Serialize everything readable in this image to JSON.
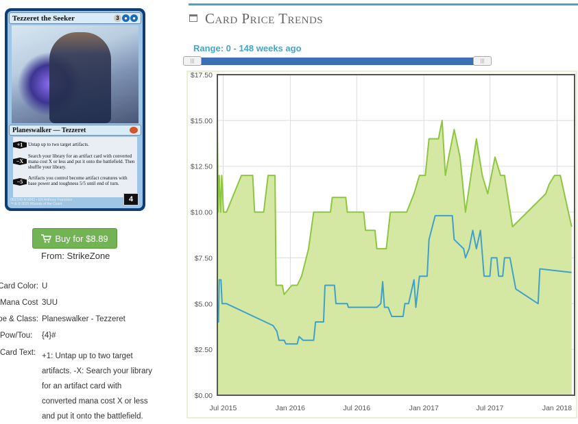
{
  "card": {
    "name": "Tezzeret the Seeker",
    "mana_generic": "3",
    "type_line": "Planeswalker — Tezzeret",
    "abilities": [
      {
        "cost": "+1",
        "text": "Untap up to two target artifacts."
      },
      {
        "cost": "−X",
        "text": "Search your library for an artifact card with converted mana cost X or less and put it onto the battlefield. Then shuffle your library."
      },
      {
        "cost": "−5",
        "text": "Artifacts you control become artifact creatures with base power and toughness 5/5 until end of turn."
      }
    ],
    "loyalty": "4",
    "collector": "062/249 M MM2 • EN  Anthony Francisco",
    "copyright": "™ & © 2015 Wizards of the Coast"
  },
  "buy": {
    "label": "Buy for $8.89",
    "from": "From: StrikeZone"
  },
  "attributes": [
    {
      "label": "Card Color:",
      "value": "U"
    },
    {
      "label": "Mana Cost",
      "value": "3UU"
    },
    {
      "label": "Type & Class:",
      "value": "Planeswalker - Tezzeret"
    },
    {
      "label": "Pow/Tou:",
      "value": "{4}#"
    },
    {
      "label": "Card Text:",
      "value": "+1: Untap up to two target artifacts. -X: Search your library for an artifact card with converted mana cost X or less and put it onto the battlefield."
    }
  ],
  "card_text_lines": [
    "+1: Untap up to two target",
    "artifacts. -X: Search your library",
    "for an artifact card with",
    "converted mana cost X or less",
    "and put it onto the battlefield."
  ],
  "section": {
    "title": "Card Price Trends",
    "range": "Range: 0 - 148 weeks ago"
  },
  "colors": {
    "green": "#8dc63f",
    "green_fill": "#d4e8a4",
    "blue": "#3fa0c8",
    "accent": "#44a6c4",
    "button": "#72b453"
  },
  "chart_data": {
    "type": "line",
    "ylim": [
      0,
      17.5
    ],
    "yticks": [
      "$0.00",
      "$2.50",
      "$5.00",
      "$7.50",
      "$10.00",
      "$12.50",
      "$15.00",
      "$17.50"
    ],
    "xticks": [
      "Jul 2015",
      "Jan 2016",
      "Jul 2016",
      "Jan 2017",
      "Jul 2017",
      "Jan 2018"
    ],
    "grid": true,
    "series": [
      {
        "fill": true,
        "points": [
          [
            "2015-06-15",
            15.0
          ],
          [
            "2015-06-17",
            10.0
          ],
          [
            "2015-06-20",
            12.0
          ],
          [
            "2015-06-24",
            10.0
          ],
          [
            "2015-06-27",
            12.0
          ],
          [
            "2015-07-02",
            10.0
          ],
          [
            "2015-07-10",
            10.0
          ],
          [
            "2015-08-20",
            12.0
          ],
          [
            "2015-09-20",
            12.0
          ],
          [
            "2015-09-25",
            10.0
          ],
          [
            "2015-10-20",
            10.0
          ],
          [
            "2015-11-01",
            12.0
          ],
          [
            "2015-11-20",
            12.0
          ],
          [
            "2015-11-23",
            6.0
          ],
          [
            "2015-12-10",
            6.0
          ],
          [
            "2015-12-15",
            5.5
          ],
          [
            "2016-01-05",
            6.0
          ],
          [
            "2016-01-20",
            6.0
          ],
          [
            "2016-02-01",
            6.5
          ],
          [
            "2016-02-20",
            8.0
          ],
          [
            "2016-03-05",
            10.0
          ],
          [
            "2016-04-20",
            10.0
          ],
          [
            "2016-04-25",
            10.8
          ],
          [
            "2016-06-01",
            10.8
          ],
          [
            "2016-06-05",
            10.0
          ],
          [
            "2016-07-20",
            10.0
          ],
          [
            "2016-07-25",
            9.0
          ],
          [
            "2016-08-20",
            9.0
          ],
          [
            "2016-08-25",
            8.0
          ],
          [
            "2016-09-20",
            8.0
          ],
          [
            "2016-10-01",
            10.0
          ],
          [
            "2016-11-15",
            10.0
          ],
          [
            "2016-12-05",
            11.0
          ],
          [
            "2016-12-20",
            12.0
          ],
          [
            "2017-01-05",
            12.0
          ],
          [
            "2017-01-15",
            14.0
          ],
          [
            "2017-02-10",
            14.0
          ],
          [
            "2017-02-20",
            15.0
          ],
          [
            "2017-03-01",
            12.0
          ],
          [
            "2017-03-10",
            13.0
          ],
          [
            "2017-03-25",
            14.5
          ],
          [
            "2017-04-10",
            13.0
          ],
          [
            "2017-04-25",
            10.0
          ],
          [
            "2017-05-10",
            12.0
          ],
          [
            "2017-05-25",
            14.0
          ],
          [
            "2017-06-10",
            12.0
          ],
          [
            "2017-06-25",
            11.0
          ],
          [
            "2017-07-05",
            12.0
          ],
          [
            "2017-07-15",
            13.0
          ],
          [
            "2017-07-30",
            12.0
          ],
          [
            "2017-08-10",
            12.0
          ],
          [
            "2017-09-01",
            9.2
          ],
          [
            "2017-12-01",
            11.0
          ],
          [
            "2017-12-10",
            11.5
          ],
          [
            "2017-12-25",
            12.0
          ],
          [
            "2018-01-10",
            12.0
          ],
          [
            "2018-02-10",
            9.2
          ]
        ]
      },
      {
        "fill": false,
        "points": [
          [
            "2015-06-15",
            5.0
          ],
          [
            "2015-06-18",
            4.0
          ],
          [
            "2015-06-20",
            6.3
          ],
          [
            "2015-06-25",
            6.3
          ],
          [
            "2015-06-28",
            5.0
          ],
          [
            "2015-07-10",
            5.0
          ],
          [
            "2015-11-15",
            3.8
          ],
          [
            "2015-11-25",
            3.5
          ],
          [
            "2015-12-01",
            3.0
          ],
          [
            "2015-12-15",
            3.0
          ],
          [
            "2015-12-20",
            2.8
          ],
          [
            "2016-01-20",
            2.8
          ],
          [
            "2016-01-25",
            3.2
          ],
          [
            "2016-02-05",
            3.0
          ],
          [
            "2016-03-05",
            3.0
          ],
          [
            "2016-03-10",
            4.0
          ],
          [
            "2016-04-01",
            4.0
          ],
          [
            "2016-04-05",
            6.0
          ],
          [
            "2016-05-01",
            6.0
          ],
          [
            "2016-05-05",
            5.0
          ],
          [
            "2016-06-05",
            5.0
          ],
          [
            "2016-06-08",
            4.8
          ],
          [
            "2016-08-25",
            4.8
          ],
          [
            "2016-09-05",
            5.0
          ],
          [
            "2016-09-10",
            6.2
          ],
          [
            "2016-09-15",
            4.8
          ],
          [
            "2016-09-25",
            4.8
          ],
          [
            "2016-10-05",
            4.3
          ],
          [
            "2016-11-05",
            4.3
          ],
          [
            "2016-11-10",
            5.0
          ],
          [
            "2016-11-20",
            5.0
          ],
          [
            "2016-12-05",
            6.3
          ],
          [
            "2016-12-10",
            4.8
          ],
          [
            "2016-12-20",
            6.5
          ],
          [
            "2017-01-10",
            6.5
          ],
          [
            "2017-01-15",
            8.5
          ],
          [
            "2017-02-01",
            9.8
          ],
          [
            "2017-03-20",
            9.8
          ],
          [
            "2017-03-25",
            8.5
          ],
          [
            "2017-04-20",
            8.0
          ],
          [
            "2017-04-25",
            7.5
          ],
          [
            "2017-05-05",
            8.0
          ],
          [
            "2017-05-15",
            9.0
          ],
          [
            "2017-05-25",
            8.0
          ],
          [
            "2017-06-05",
            9.0
          ],
          [
            "2017-06-15",
            6.5
          ],
          [
            "2017-07-01",
            6.5
          ],
          [
            "2017-07-05",
            7.5
          ],
          [
            "2017-07-20",
            7.5
          ],
          [
            "2017-07-25",
            6.5
          ],
          [
            "2017-08-05",
            6.5
          ],
          [
            "2017-08-10",
            7.5
          ],
          [
            "2017-08-25",
            7.5
          ],
          [
            "2017-09-10",
            5.8
          ],
          [
            "2017-11-10",
            5.0
          ],
          [
            "2017-11-15",
            6.9
          ],
          [
            "2018-02-10",
            6.7
          ]
        ]
      }
    ]
  }
}
